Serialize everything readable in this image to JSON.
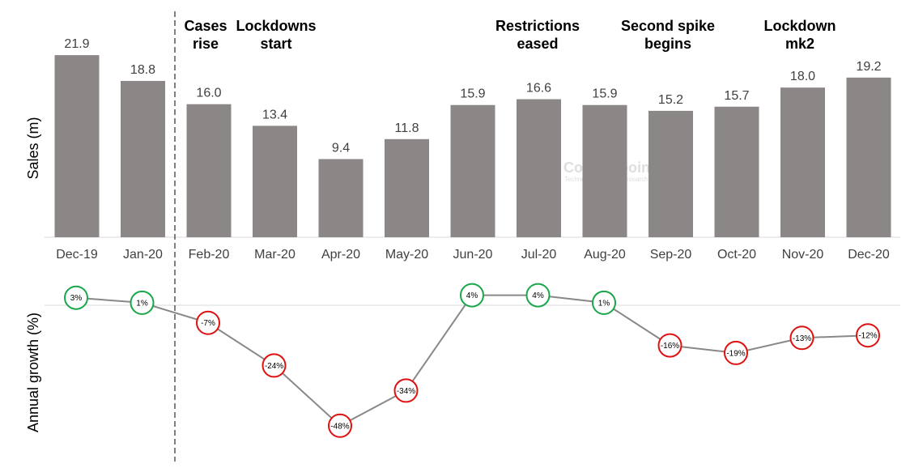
{
  "chart_data": [
    {
      "type": "bar",
      "ylabel": "Sales (m)",
      "categories": [
        "Dec-19",
        "Jan-20",
        "Feb-20",
        "Mar-20",
        "Apr-20",
        "May-20",
        "Jun-20",
        "Jul-20",
        "Aug-20",
        "Sep-20",
        "Oct-20",
        "Nov-20",
        "Dec-20"
      ],
      "values": [
        21.9,
        18.8,
        16.0,
        13.4,
        9.4,
        11.8,
        15.9,
        16.6,
        15.9,
        15.2,
        15.7,
        18.0,
        19.2
      ],
      "value_labels": [
        "21.9",
        "18.8",
        "16.0",
        "13.4",
        "9.4",
        "11.8",
        "15.9",
        "16.6",
        "15.9",
        "15.2",
        "15.7",
        "18.0",
        "19.2"
      ],
      "ylim": [
        0,
        22
      ],
      "bar_color": "#8c8787",
      "annotations": [
        {
          "category": "Feb-20",
          "lines": [
            "Cases",
            "rise"
          ]
        },
        {
          "category": "Mar-20",
          "lines": [
            "Lockdowns",
            "start"
          ]
        },
        {
          "category": "Jul-20",
          "lines": [
            "Restrictions",
            "eased"
          ]
        },
        {
          "category": "Sep-20",
          "lines": [
            "Second spike",
            "begins"
          ]
        },
        {
          "category": "Nov-20",
          "lines": [
            "Lockdown",
            "mk2"
          ]
        }
      ]
    },
    {
      "type": "line",
      "ylabel": "Annual growth (%)",
      "categories": [
        "Dec-19",
        "Jan-20",
        "Feb-20",
        "Mar-20",
        "Apr-20",
        "May-20",
        "Jun-20",
        "Jul-20",
        "Aug-20",
        "Sep-20",
        "Oct-20",
        "Nov-20",
        "Dec-20"
      ],
      "values": [
        3,
        1,
        -7,
        -24,
        -48,
        -34,
        4,
        4,
        1,
        -16,
        -19,
        -13,
        -12
      ],
      "value_labels": [
        "3%",
        "1%",
        "-7%",
        "-24%",
        "-48%",
        "-34%",
        "4%",
        "4%",
        "1%",
        "-16%",
        "-19%",
        "-13%",
        "-12%"
      ],
      "line_color": "#8c8787",
      "positive_color": "#1aa64a",
      "negative_color": "#e01010"
    }
  ],
  "watermark": {
    "title": "Counterpoint",
    "subtitle": "Technology Market Research"
  }
}
